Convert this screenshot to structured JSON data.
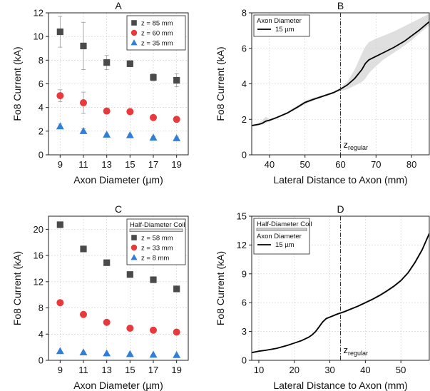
{
  "chart_data": [
    {
      "id": "A",
      "type": "scatter",
      "title": "A",
      "xlabel": "Axon Diameter (µm)",
      "ylabel": "Fo8 Current (kA)",
      "xlim": [
        8,
        20
      ],
      "ylim": [
        0,
        12
      ],
      "xticks": [
        9,
        11,
        13,
        15,
        17,
        19
      ],
      "yticks": [
        0,
        2,
        4,
        6,
        8,
        10,
        12
      ],
      "grid": true,
      "legend_position": "top-right",
      "legend_header": "",
      "series": [
        {
          "name": "z = 85 mm",
          "marker": "square",
          "color": "#4a4a4a",
          "x": [
            9,
            11,
            13,
            15,
            17,
            19
          ],
          "y": [
            10.4,
            9.2,
            7.8,
            7.7,
            6.55,
            6.3
          ],
          "err": [
            1.3,
            2.0,
            0.6,
            0.25,
            0.3,
            0.55
          ]
        },
        {
          "name": "z = 60 mm",
          "marker": "circle",
          "color": "#e8393c",
          "x": [
            9,
            11,
            13,
            15,
            17,
            19
          ],
          "y": [
            5.0,
            4.4,
            3.7,
            3.65,
            3.15,
            3.0
          ],
          "err": [
            0.5,
            0.9,
            0.25,
            0.15,
            0.15,
            0.2
          ]
        },
        {
          "name": "z = 35 mm",
          "marker": "triangle",
          "color": "#2f7fd6",
          "x": [
            9,
            11,
            13,
            15,
            17,
            19
          ],
          "y": [
            2.4,
            2.0,
            1.7,
            1.65,
            1.45,
            1.4
          ],
          "err": [
            0.2,
            0.2,
            0.1,
            0.1,
            0.1,
            0.1
          ]
        }
      ]
    },
    {
      "id": "B",
      "type": "line",
      "title": "B",
      "xlabel": "Lateral Distance to Axon (mm)",
      "ylabel": "Fo8 Current (kA)",
      "xlim": [
        35,
        85
      ],
      "ylim": [
        0,
        8
      ],
      "xticks": [
        40,
        50,
        60,
        70,
        80
      ],
      "yticks": [
        0,
        2,
        4,
        6,
        8
      ],
      "grid": true,
      "legend_position": "top-left",
      "legend_header": "Axon Diameter",
      "vline": {
        "x": 60,
        "label_main": "z",
        "label_sub": "regular"
      },
      "series": [
        {
          "name": "15 µm",
          "color": "#000000",
          "x": [
            35,
            37,
            38,
            39,
            40,
            42,
            45,
            48,
            50,
            52,
            55,
            58,
            60,
            62,
            64,
            66,
            67,
            68,
            70,
            72,
            75,
            78,
            80,
            82,
            85
          ],
          "y": [
            1.65,
            1.72,
            1.78,
            1.9,
            1.95,
            2.1,
            2.35,
            2.7,
            2.95,
            3.1,
            3.3,
            3.5,
            3.7,
            3.95,
            4.3,
            4.8,
            5.15,
            5.35,
            5.55,
            5.75,
            6.05,
            6.4,
            6.7,
            7.0,
            7.5
          ],
          "band_low": [
            1.6,
            1.66,
            1.7,
            1.8,
            1.88,
            2.05,
            2.3,
            2.62,
            2.85,
            3.02,
            3.25,
            3.45,
            3.6,
            3.7,
            3.9,
            4.1,
            4.3,
            4.6,
            5.0,
            5.35,
            5.75,
            6.15,
            6.45,
            6.8,
            7.3
          ],
          "band_high": [
            1.7,
            1.78,
            1.95,
            2.15,
            2.0,
            2.15,
            2.42,
            2.8,
            3.05,
            3.2,
            3.36,
            3.56,
            3.8,
            4.15,
            4.8,
            5.7,
            6.1,
            6.35,
            6.55,
            6.7,
            6.95,
            7.25,
            7.45,
            7.65,
            7.95
          ]
        }
      ]
    },
    {
      "id": "C",
      "type": "scatter",
      "title": "C",
      "xlabel": "Axon Diameter (µm)",
      "ylabel": "Fo8 Current (kA)",
      "xlim": [
        8,
        20
      ],
      "ylim": [
        0,
        22
      ],
      "xticks": [
        9,
        11,
        13,
        15,
        17,
        19
      ],
      "yticks": [
        0,
        4,
        8,
        12,
        16,
        20
      ],
      "grid": true,
      "legend_position": "top-right",
      "legend_header": "Half-Diameter Coil",
      "series": [
        {
          "name": "z = 58 mm",
          "marker": "square",
          "color": "#4a4a4a",
          "x": [
            9,
            11,
            13,
            15,
            17,
            19
          ],
          "y": [
            20.7,
            17.0,
            14.9,
            13.1,
            12.3,
            10.9
          ],
          "err": []
        },
        {
          "name": "z = 33 mm",
          "marker": "circle",
          "color": "#e8393c",
          "x": [
            9,
            11,
            13,
            15,
            17,
            19
          ],
          "y": [
            8.8,
            7.0,
            5.8,
            4.9,
            4.6,
            4.3
          ],
          "err": []
        },
        {
          "name": "z = 8 mm",
          "marker": "triangle",
          "color": "#2f7fd6",
          "x": [
            9,
            11,
            13,
            15,
            17,
            19
          ],
          "y": [
            1.4,
            1.2,
            1.05,
            0.95,
            0.85,
            0.8
          ],
          "err": []
        }
      ]
    },
    {
      "id": "D",
      "type": "line",
      "title": "D",
      "xlabel": "Lateral Distance to Axon (mm)",
      "ylabel": "Fo8 Current (kA)",
      "xlim": [
        8,
        58
      ],
      "ylim": [
        0,
        15
      ],
      "xticks": [
        10,
        20,
        30,
        40,
        50
      ],
      "yticks": [
        0,
        3,
        6,
        9,
        12,
        15
      ],
      "grid": true,
      "legend_position": "top-left",
      "legend_header": "Half-Diameter Coil",
      "legend_subheader": "Axon Diameter",
      "vline": {
        "x": 33,
        "label_main": "z",
        "label_sub": "regular"
      },
      "series": [
        {
          "name": "15 µm",
          "color": "#000000",
          "x": [
            8,
            10,
            12,
            15,
            18,
            20,
            22,
            24,
            25,
            26,
            27,
            28,
            29,
            30,
            32,
            34,
            36,
            38,
            40,
            42,
            44,
            46,
            48,
            50,
            52,
            54,
            56,
            58
          ],
          "y": [
            0.8,
            0.95,
            1.05,
            1.25,
            1.55,
            1.8,
            2.05,
            2.4,
            2.65,
            3.0,
            3.5,
            4.0,
            4.35,
            4.5,
            4.8,
            5.05,
            5.35,
            5.65,
            6.0,
            6.35,
            6.75,
            7.2,
            7.7,
            8.3,
            9.1,
            10.2,
            11.5,
            13.2
          ],
          "band_low": [
            0.78,
            0.92,
            1.02,
            1.22,
            1.5,
            1.75,
            2.0,
            2.32,
            2.55,
            2.88,
            3.35,
            3.85,
            4.22,
            4.4,
            4.7,
            4.95,
            5.25,
            5.55,
            5.88,
            6.22,
            6.6,
            7.05,
            7.55,
            8.15,
            8.95,
            10.0,
            11.3,
            13.0
          ],
          "band_high": [
            0.82,
            0.98,
            1.08,
            1.28,
            1.6,
            1.85,
            2.1,
            2.48,
            2.75,
            3.12,
            3.65,
            4.15,
            4.48,
            4.6,
            4.9,
            5.15,
            5.45,
            5.75,
            6.12,
            6.48,
            6.9,
            7.35,
            7.85,
            8.45,
            9.25,
            10.4,
            11.7,
            13.4
          ]
        }
      ]
    }
  ]
}
